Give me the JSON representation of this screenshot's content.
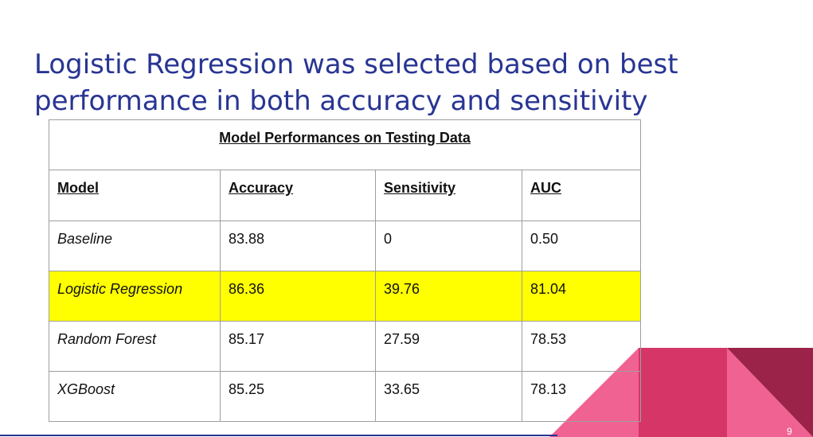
{
  "slide": {
    "title": "Logistic Regression was selected based on best performance in both accuracy and sensitivity",
    "page_number": "9"
  },
  "table": {
    "caption": "Model Performances on Testing Data",
    "headers": [
      "Model",
      "Accuracy",
      "Sensitivity",
      "AUC"
    ],
    "rows": [
      {
        "model": "Baseline",
        "accuracy": "83.88",
        "sensitivity": "0",
        "auc": "0.50",
        "highlighted": false
      },
      {
        "model": "Logistic Regression",
        "accuracy": "86.36",
        "sensitivity": "39.76",
        "auc": "81.04",
        "highlighted": true
      },
      {
        "model": "Random Forest",
        "accuracy": "85.17",
        "sensitivity": "27.59",
        "auc": "78.53",
        "highlighted": false
      },
      {
        "model": "XGBoost",
        "accuracy": "85.25",
        "sensitivity": "33.65",
        "auc": "78.13",
        "highlighted": false
      }
    ]
  },
  "colors": {
    "title": "#283593",
    "highlight_row": "#ffff00",
    "deco_light_pink": "#f06292",
    "deco_magenta": "#d63568",
    "deco_dark_maroon": "#9b2249"
  }
}
